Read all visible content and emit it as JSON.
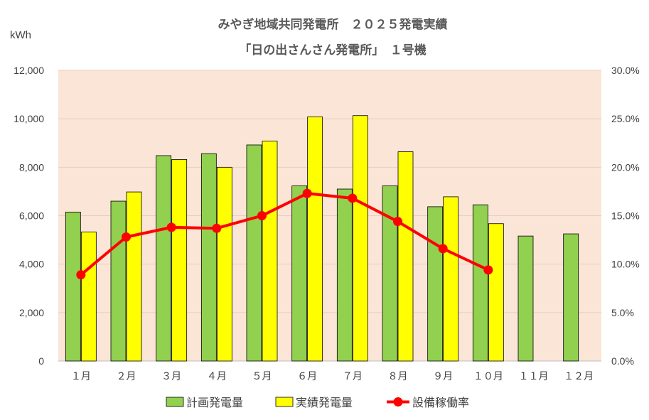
{
  "chart_data": {
    "type": "bar",
    "title_line1": "みやぎ地域共同発電所　２０２５発電実績",
    "title_line2": "「日の出さんさん発電所」　１号機",
    "y_unit": "kWh",
    "categories": [
      "１月",
      "２月",
      "３月",
      "４月",
      "５月",
      "６月",
      "７月",
      "８月",
      "９月",
      "１０月",
      "１１月",
      "１２月"
    ],
    "ylim": [
      0,
      12000
    ],
    "y_ticks": [
      0,
      2000,
      4000,
      6000,
      8000,
      10000,
      12000
    ],
    "y_tick_labels": [
      "0",
      "2,000",
      "4,000",
      "6,000",
      "8,000",
      "10,000",
      "12,000"
    ],
    "y2lim": [
      0,
      30
    ],
    "y2_ticks": [
      0,
      5,
      10,
      15,
      20,
      25,
      30
    ],
    "y2_tick_labels": [
      "0.0%",
      "5.0%",
      "10.0%",
      "15.0%",
      "20.0%",
      "25.0%",
      "30.0%"
    ],
    "series": [
      {
        "name": "計画発電量",
        "kind": "bar",
        "axis": "left",
        "color": "#92D050",
        "values": [
          6150,
          6600,
          8480,
          8560,
          8920,
          7230,
          7100,
          7230,
          6370,
          6450,
          5160,
          5250
        ]
      },
      {
        "name": "実績発電量",
        "kind": "bar",
        "axis": "left",
        "color": "#FFFF00",
        "values": [
          5330,
          6980,
          8320,
          8000,
          9080,
          10080,
          10130,
          8640,
          6780,
          5670,
          null,
          null
        ]
      },
      {
        "name": "設備稼働率",
        "kind": "line",
        "axis": "right",
        "color": "#FF0000",
        "values": [
          8.9,
          12.8,
          13.8,
          13.7,
          15.0,
          17.3,
          16.8,
          14.4,
          11.6,
          9.4,
          null,
          null
        ]
      }
    ],
    "plot_background": "#FBE5D6",
    "grid": true,
    "legend_position": "bottom"
  }
}
